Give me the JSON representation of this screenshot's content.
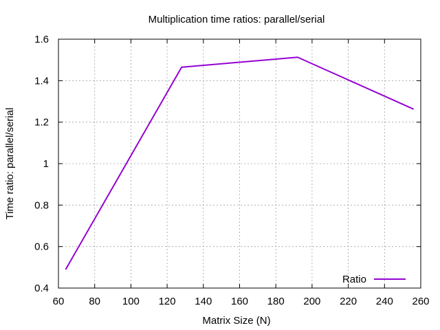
{
  "chart_data": {
    "type": "line",
    "title": "Multiplication time ratios: parallel/serial",
    "xlabel": "Matrix Size (N)",
    "ylabel": "Time ratio: parallel/serial",
    "xlim": [
      60,
      260
    ],
    "ylim": [
      0.4,
      1.6
    ],
    "xticks": [
      60,
      80,
      100,
      120,
      140,
      160,
      180,
      200,
      220,
      240,
      260
    ],
    "yticks": [
      0.4,
      0.6,
      0.8,
      1.0,
      1.2,
      1.4,
      1.6
    ],
    "xtick_labels": [
      "60",
      "80",
      "100",
      "120",
      "140",
      "160",
      "180",
      "200",
      "220",
      "240",
      "260"
    ],
    "ytick_labels": [
      "0.4",
      "0.6",
      "0.8",
      "1",
      "1.2",
      "1.4",
      "1.6"
    ],
    "grid": true,
    "legend": "bottom-right",
    "series": [
      {
        "name": "Ratio",
        "color": "#9400d3",
        "x": [
          64,
          128,
          192,
          256
        ],
        "y": [
          0.49,
          1.465,
          1.513,
          1.263
        ]
      }
    ]
  }
}
